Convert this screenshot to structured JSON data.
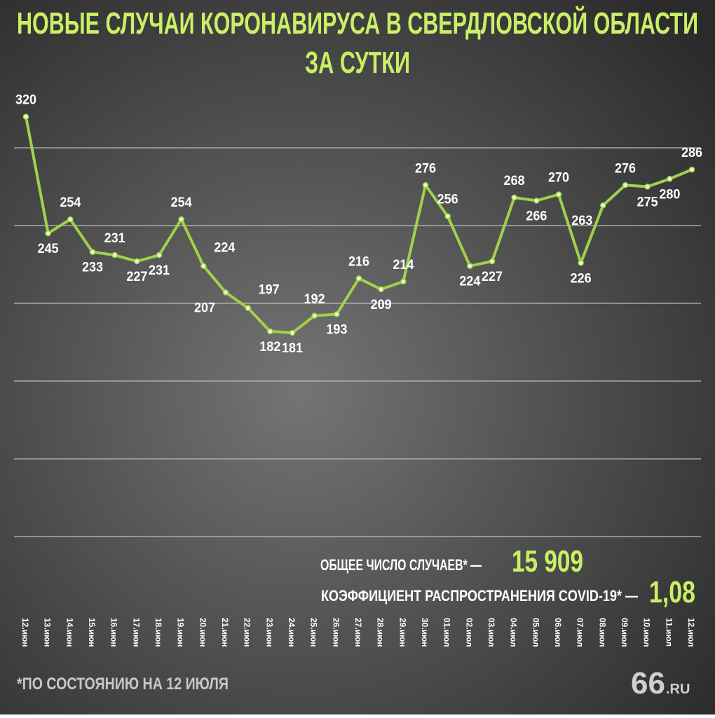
{
  "chart_data": {
    "type": "line",
    "title": "НОВЫЕ СЛУЧАИ КОРОНАВИРУСА В СВЕРДЛОВСКОЙ ОБЛАСТИ",
    "subtitle": "ЗА СУТКИ",
    "categories": [
      "12.июн",
      "13.июн",
      "14.июн",
      "15.июн",
      "16.июн",
      "17.июн",
      "18.июн",
      "19.июн",
      "20.июн",
      "21.июн",
      "22.июн",
      "23.июн",
      "24.июн",
      "25.июн",
      "26.июн",
      "27.июн",
      "28.июн",
      "29.июн",
      "30.июн",
      "01.июл",
      "02.июл",
      "03.июл",
      "04.июл",
      "05.июл",
      "06.июл",
      "07.июл",
      "08.июл",
      "09.июл",
      "10.июл",
      "11.июл",
      "12.июл"
    ],
    "values": [
      320,
      245,
      254,
      233,
      231,
      227,
      231,
      254,
      224,
      207,
      197,
      182,
      181,
      192,
      193,
      216,
      209,
      214,
      276,
      256,
      224,
      227,
      268,
      266,
      270,
      226,
      263,
      276,
      275,
      280,
      286
    ],
    "color": "#9fd24a",
    "ylim": [
      0,
      350
    ],
    "yticks": [
      50,
      100,
      150,
      200,
      250,
      300
    ],
    "grid": true,
    "annotations": [
      {
        "label": "ОБЩЕЕ ЧИСЛО СЛУЧАЕВ* —",
        "value": "15 909"
      },
      {
        "label": "КОЭФФИЦИЕНТ РАСПРОСТРАНЕНИЯ COVID-19* —",
        "value": "1,08"
      }
    ],
    "footnote": "*ПО СОСТОЯНИЮ НА 12 ИЮЛЯ",
    "logo": {
      "number": "66",
      "domain": ".RU"
    }
  }
}
